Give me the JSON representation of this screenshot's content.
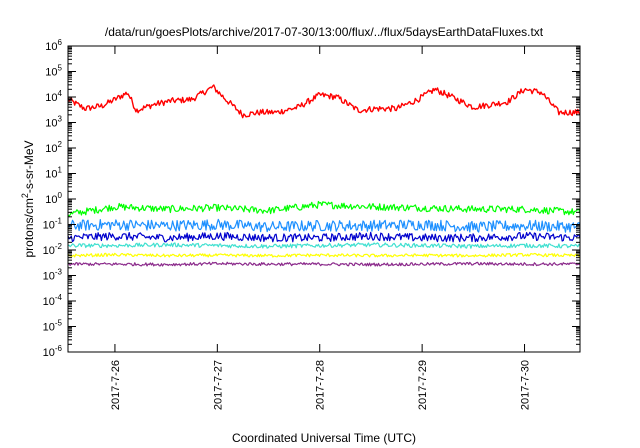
{
  "chart_data": {
    "type": "line",
    "title": "/data/run/goesPlots/archive/2017-07-30/13:00/flux/../flux/5daysEarthDataFluxes.txt",
    "xlabel": "Coordinated Universal Time (UTC)",
    "ylabel": {
      "pre": "protons/cm",
      "sup": "2",
      "post": "-s-sr-MeV"
    },
    "y_scale": "log",
    "ylim": [
      1e-06,
      1000000.0
    ],
    "y_ticks": [
      {
        "base": "10",
        "exp": "-6",
        "value": 1e-06
      },
      {
        "base": "10",
        "exp": "-5",
        "value": 1e-05
      },
      {
        "base": "10",
        "exp": "-4",
        "value": 0.0001
      },
      {
        "base": "10",
        "exp": "-3",
        "value": 0.001
      },
      {
        "base": "10",
        "exp": "-2",
        "value": 0.01
      },
      {
        "base": "10",
        "exp": "-1",
        "value": 0.1
      },
      {
        "base": "10",
        "exp": "0",
        "value": 1
      },
      {
        "base": "10",
        "exp": "1",
        "value": 10
      },
      {
        "base": "10",
        "exp": "2",
        "value": 100
      },
      {
        "base": "10",
        "exp": "3",
        "value": 1000
      },
      {
        "base": "10",
        "exp": "4",
        "value": 10000
      },
      {
        "base": "10",
        "exp": "5",
        "value": 100000
      },
      {
        "base": "10",
        "exp": "6",
        "value": 1000000
      }
    ],
    "xlim": [
      "2017-07-25 13:00",
      "2017-07-30 13:00"
    ],
    "x_ticks": [
      {
        "label": "2017-7-26",
        "value": "2017-07-26 00:00"
      },
      {
        "label": "2017-7-27",
        "value": "2017-07-27 00:00"
      },
      {
        "label": "2017-7-28",
        "value": "2017-07-28 00:00"
      },
      {
        "label": "2017-7-29",
        "value": "2017-07-29 00:00"
      },
      {
        "label": "2017-7-30",
        "value": "2017-07-30 00:00"
      }
    ],
    "grid": false,
    "legend": "none",
    "series": [
      {
        "color": "#ff0000",
        "x": [
          "2017-07-25 13:00",
          "2017-07-25 17:00",
          "2017-07-25 21:00",
          "2017-07-26 00:00",
          "2017-07-26 03:00",
          "2017-07-26 05:00",
          "2017-07-26 09:00",
          "2017-07-26 13:00",
          "2017-07-26 18:00",
          "2017-07-26 23:00",
          "2017-07-27 02:00",
          "2017-07-27 06:00",
          "2017-07-27 10:00",
          "2017-07-27 14:00",
          "2017-07-27 19:00",
          "2017-07-28 00:00",
          "2017-07-28 04:00",
          "2017-07-28 09:00",
          "2017-07-28 13:00",
          "2017-07-28 18:00",
          "2017-07-28 23:00",
          "2017-07-29 03:00",
          "2017-07-29 07:00",
          "2017-07-29 12:00",
          "2017-07-29 16:00",
          "2017-07-29 20:00",
          "2017-07-30 00:00",
          "2017-07-30 04:00",
          "2017-07-30 08:00",
          "2017-07-30 13:00"
        ],
        "values": [
          8000,
          3500,
          4500,
          8000,
          15000,
          3000,
          5000,
          7000,
          8000,
          25000,
          8000,
          2000,
          2500,
          2500,
          4000,
          12000,
          10000,
          3000,
          3500,
          3500,
          8000,
          20000,
          10000,
          4000,
          5000,
          6500,
          20000,
          15000,
          2500,
          2500
        ]
      },
      {
        "color": "#00ff00",
        "x": [
          "2017-07-25 13:00",
          "2017-07-26 00:00",
          "2017-07-26 12:00",
          "2017-07-27 00:00",
          "2017-07-27 12:00",
          "2017-07-28 00:00",
          "2017-07-28 12:00",
          "2017-07-29 00:00",
          "2017-07-29 12:00",
          "2017-07-30 00:00",
          "2017-07-30 13:00"
        ],
        "values": [
          0.25,
          0.5,
          0.4,
          0.45,
          0.35,
          0.6,
          0.5,
          0.45,
          0.4,
          0.4,
          0.3
        ]
      },
      {
        "color": "#1e90ff",
        "x": [
          "2017-07-25 13:00",
          "2017-07-26 00:00",
          "2017-07-26 12:00",
          "2017-07-27 00:00",
          "2017-07-27 12:00",
          "2017-07-28 00:00",
          "2017-07-28 12:00",
          "2017-07-29 00:00",
          "2017-07-29 12:00",
          "2017-07-30 00:00",
          "2017-07-30 13:00"
        ],
        "values": [
          0.09,
          0.1,
          0.09,
          0.1,
          0.08,
          0.09,
          0.09,
          0.1,
          0.08,
          0.09,
          0.08
        ]
      },
      {
        "color": "#0000cd",
        "x": [
          "2017-07-25 13:00",
          "2017-07-26 00:00",
          "2017-07-26 12:00",
          "2017-07-27 00:00",
          "2017-07-27 12:00",
          "2017-07-28 00:00",
          "2017-07-28 12:00",
          "2017-07-29 00:00",
          "2017-07-29 12:00",
          "2017-07-30 00:00",
          "2017-07-30 13:00"
        ],
        "values": [
          0.03,
          0.035,
          0.03,
          0.035,
          0.03,
          0.03,
          0.035,
          0.03,
          0.03,
          0.035,
          0.03
        ]
      },
      {
        "color": "#40e0d0",
        "x": [
          "2017-07-25 13:00",
          "2017-07-26 00:00",
          "2017-07-26 12:00",
          "2017-07-27 00:00",
          "2017-07-27 12:00",
          "2017-07-28 00:00",
          "2017-07-28 12:00",
          "2017-07-29 00:00",
          "2017-07-29 12:00",
          "2017-07-30 00:00",
          "2017-07-30 13:00"
        ],
        "values": [
          0.015,
          0.015,
          0.016,
          0.015,
          0.014,
          0.015,
          0.016,
          0.015,
          0.014,
          0.015,
          0.014
        ]
      },
      {
        "color": "#ffff00",
        "x": [
          "2017-07-25 13:00",
          "2017-07-26 00:00",
          "2017-07-26 12:00",
          "2017-07-27 00:00",
          "2017-07-27 12:00",
          "2017-07-28 00:00",
          "2017-07-28 12:00",
          "2017-07-29 00:00",
          "2017-07-29 12:00",
          "2017-07-30 00:00",
          "2017-07-30 13:00"
        ],
        "values": [
          0.006,
          0.0065,
          0.006,
          0.0062,
          0.006,
          0.0063,
          0.006,
          0.0062,
          0.006,
          0.0065,
          0.006
        ]
      },
      {
        "color": "#8b2a8b",
        "x": [
          "2017-07-25 13:00",
          "2017-07-26 00:00",
          "2017-07-26 12:00",
          "2017-07-27 00:00",
          "2017-07-27 12:00",
          "2017-07-28 00:00",
          "2017-07-28 12:00",
          "2017-07-29 00:00",
          "2017-07-29 12:00",
          "2017-07-30 00:00",
          "2017-07-30 13:00"
        ],
        "values": [
          0.0028,
          0.0028,
          0.0027,
          0.0029,
          0.0028,
          0.0028,
          0.0027,
          0.0028,
          0.0029,
          0.0028,
          0.0028
        ]
      }
    ]
  }
}
